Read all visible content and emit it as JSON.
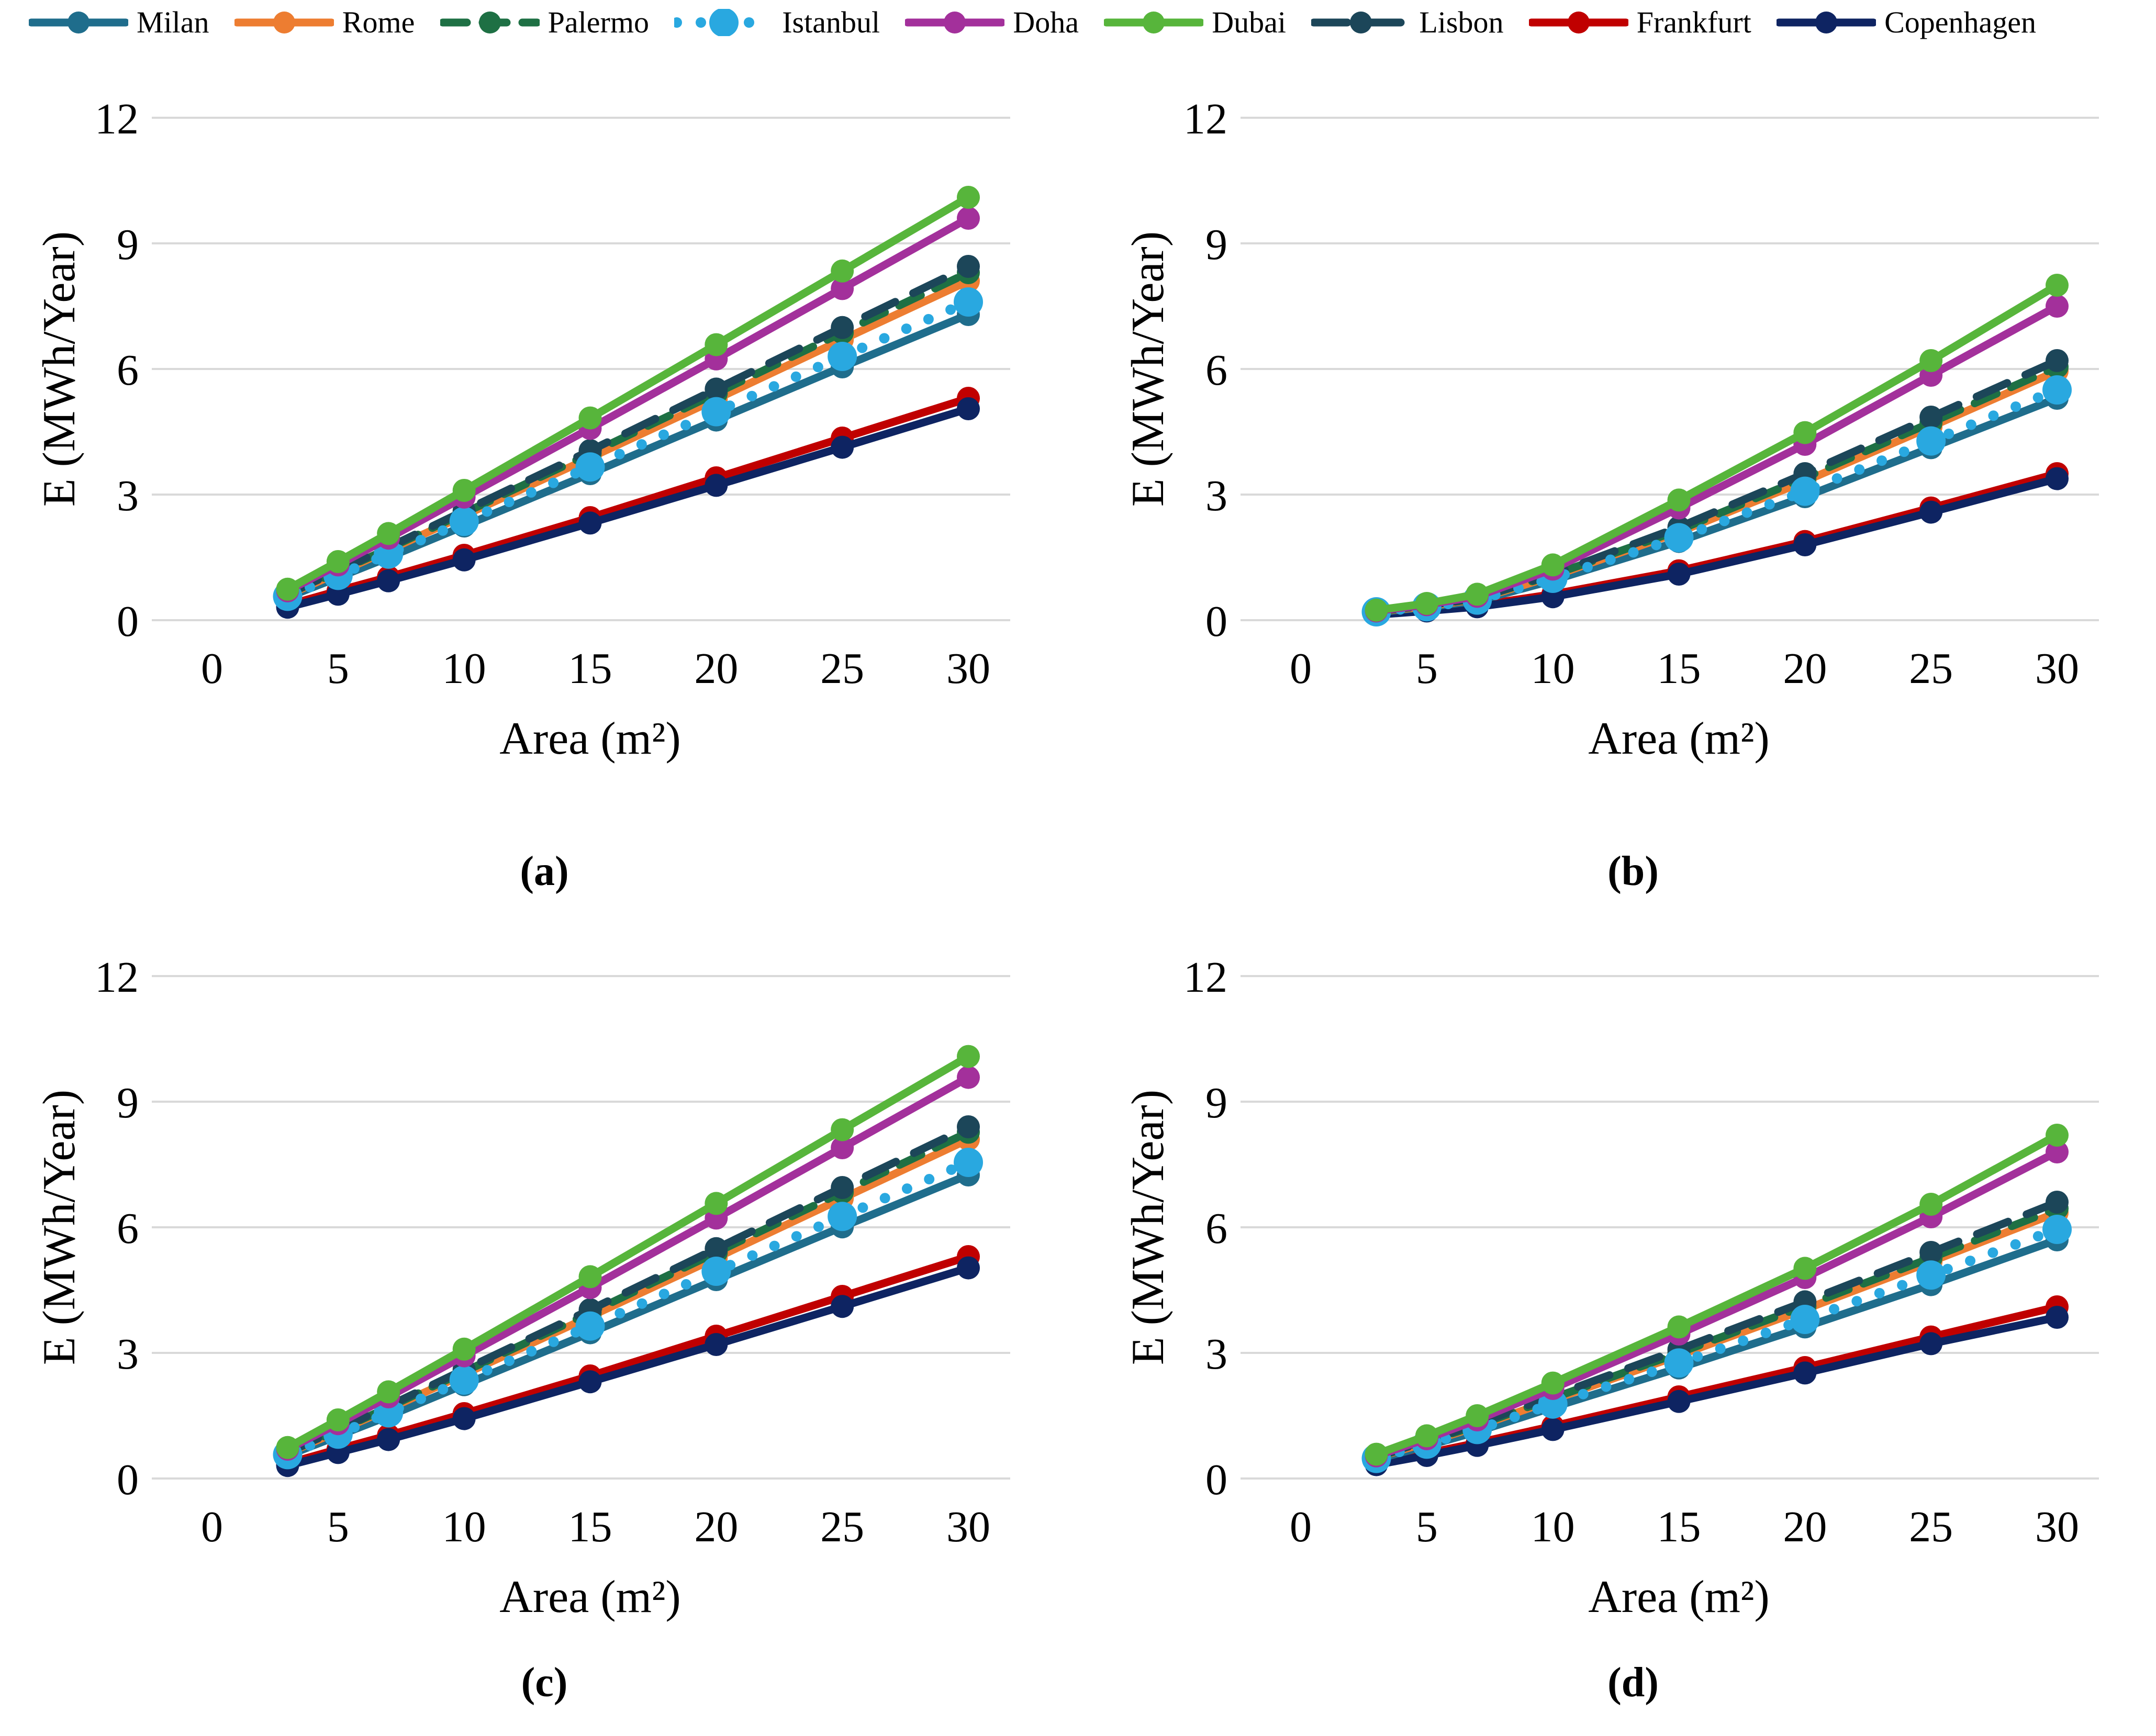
{
  "legend": {
    "items": [
      {
        "label": "Milan",
        "color": "#1F6D8C",
        "dash": "solid"
      },
      {
        "label": "Rome",
        "color": "#ED7D31",
        "dash": "solid"
      },
      {
        "label": "Palermo",
        "color": "#1E7044",
        "dash": "dashed"
      },
      {
        "label": "Istanbul",
        "color": "#29A8E0",
        "dash": "dotted"
      },
      {
        "label": "Doha",
        "color": "#A3309B",
        "dash": "solid"
      },
      {
        "label": "Dubai",
        "color": "#57B53B",
        "dash": "solid"
      },
      {
        "label": "Lisbon",
        "color": "#1C4659",
        "dash": "long-dash"
      },
      {
        "label": "Frankfurt",
        "color": "#C00000",
        "dash": "solid"
      },
      {
        "label": "Copenhagen",
        "color": "#0E2462",
        "dash": "solid"
      }
    ]
  },
  "axes": {
    "x_label": "Area (m²)",
    "y_label": "E (MWh/Year)",
    "x_ticks": [
      0,
      5,
      10,
      15,
      20,
      25,
      30
    ],
    "y_ticks": [
      0,
      3,
      6,
      9,
      12
    ],
    "x_range": [
      0,
      30
    ],
    "y_range": [
      0,
      12
    ],
    "grid": "horizontal",
    "gridline_color": "#D9D9D9"
  },
  "draw_order": [
    "Frankfurt",
    "Copenhagen",
    "Milan",
    "Rome",
    "Palermo",
    "Lisbon",
    "Istanbul",
    "Doha",
    "Dubai"
  ],
  "chart_data": [
    {
      "panel": "a",
      "caption": "(a)",
      "type": "line",
      "x": [
        3,
        5,
        7,
        10,
        15,
        20,
        25,
        30
      ],
      "series": [
        {
          "name": "Milan",
          "values": [
            0.55,
            1.02,
            1.5,
            2.25,
            3.5,
            4.78,
            6.05,
            7.3
          ]
        },
        {
          "name": "Rome",
          "values": [
            0.6,
            1.13,
            1.67,
            2.5,
            3.88,
            5.28,
            6.7,
            8.1
          ]
        },
        {
          "name": "Palermo",
          "values": [
            0.62,
            1.16,
            1.71,
            2.56,
            3.98,
            5.42,
            6.87,
            8.3
          ]
        },
        {
          "name": "Istanbul",
          "values": [
            0.57,
            1.07,
            1.58,
            2.36,
            3.66,
            4.98,
            6.3,
            7.6
          ]
        },
        {
          "name": "Doha",
          "values": [
            0.7,
            1.32,
            1.96,
            2.94,
            4.58,
            6.24,
            7.92,
            9.6
          ]
        },
        {
          "name": "Dubai",
          "values": [
            0.74,
            1.4,
            2.07,
            3.1,
            4.83,
            6.58,
            8.34,
            10.1
          ]
        },
        {
          "name": "Lisbon",
          "values": [
            0.63,
            1.18,
            1.74,
            2.61,
            4.05,
            5.52,
            6.99,
            8.45
          ]
        },
        {
          "name": "Frankfurt",
          "values": [
            0.36,
            0.7,
            1.03,
            1.55,
            2.45,
            3.4,
            4.35,
            5.3
          ]
        },
        {
          "name": "Copenhagen",
          "values": [
            0.31,
            0.62,
            0.94,
            1.44,
            2.32,
            3.22,
            4.13,
            5.05
          ]
        }
      ]
    },
    {
      "panel": "b",
      "caption": "(b)",
      "type": "line",
      "x": [
        3,
        5,
        7,
        10,
        15,
        20,
        25,
        30
      ],
      "series": [
        {
          "name": "Milan",
          "values": [
            0.19,
            0.31,
            0.46,
            0.95,
            1.88,
            2.95,
            4.12,
            5.3
          ]
        },
        {
          "name": "Rome",
          "values": [
            0.2,
            0.33,
            0.5,
            1.05,
            2.1,
            3.32,
            4.62,
            5.95
          ]
        },
        {
          "name": "Palermo",
          "values": [
            0.21,
            0.34,
            0.52,
            1.08,
            2.15,
            3.4,
            4.72,
            6.05
          ]
        },
        {
          "name": "Istanbul",
          "values": [
            0.2,
            0.32,
            0.48,
            1.0,
            1.97,
            3.08,
            4.28,
            5.5
          ]
        },
        {
          "name": "Doha",
          "values": [
            0.22,
            0.37,
            0.57,
            1.22,
            2.68,
            4.2,
            5.85,
            7.5
          ]
        },
        {
          "name": "Dubai",
          "values": [
            0.24,
            0.4,
            0.62,
            1.32,
            2.87,
            4.48,
            6.2,
            8.0
          ]
        },
        {
          "name": "Lisbon",
          "values": [
            0.21,
            0.35,
            0.53,
            1.1,
            2.22,
            3.5,
            4.85,
            6.2
          ]
        },
        {
          "name": "Frankfurt",
          "values": [
            0.15,
            0.24,
            0.35,
            0.62,
            1.18,
            1.88,
            2.68,
            3.5
          ]
        },
        {
          "name": "Copenhagen",
          "values": [
            0.13,
            0.22,
            0.32,
            0.56,
            1.1,
            1.8,
            2.58,
            3.38
          ]
        }
      ]
    },
    {
      "panel": "c",
      "caption": "(c)",
      "type": "line",
      "x": [
        3,
        5,
        7,
        10,
        15,
        20,
        25,
        30
      ],
      "series": [
        {
          "name": "Milan",
          "values": [
            0.55,
            1.02,
            1.49,
            2.24,
            3.48,
            4.75,
            6.01,
            7.25
          ]
        },
        {
          "name": "Rome",
          "values": [
            0.6,
            1.13,
            1.66,
            2.49,
            3.87,
            5.27,
            6.69,
            8.1
          ]
        },
        {
          "name": "Palermo",
          "values": [
            0.62,
            1.15,
            1.7,
            2.55,
            3.96,
            5.4,
            6.84,
            8.27
          ]
        },
        {
          "name": "Istanbul",
          "values": [
            0.57,
            1.06,
            1.57,
            2.35,
            3.64,
            4.95,
            6.26,
            7.55
          ]
        },
        {
          "name": "Doha",
          "values": [
            0.7,
            1.31,
            1.95,
            2.93,
            4.56,
            6.22,
            7.9,
            9.58
          ]
        },
        {
          "name": "Dubai",
          "values": [
            0.74,
            1.4,
            2.07,
            3.09,
            4.82,
            6.57,
            8.33,
            10.08
          ]
        },
        {
          "name": "Lisbon",
          "values": [
            0.63,
            1.17,
            1.73,
            2.6,
            4.03,
            5.49,
            6.95,
            8.4
          ]
        },
        {
          "name": "Frankfurt",
          "values": [
            0.36,
            0.7,
            1.03,
            1.55,
            2.45,
            3.4,
            4.35,
            5.3
          ]
        },
        {
          "name": "Copenhagen",
          "values": [
            0.31,
            0.62,
            0.93,
            1.43,
            2.31,
            3.2,
            4.11,
            5.03
          ]
        }
      ]
    },
    {
      "panel": "d",
      "caption": "(d)",
      "type": "line",
      "x": [
        3,
        5,
        7,
        10,
        15,
        20,
        25,
        30
      ],
      "series": [
        {
          "name": "Milan",
          "values": [
            0.46,
            0.78,
            1.12,
            1.7,
            2.64,
            3.62,
            4.63,
            5.7
          ]
        },
        {
          "name": "Rome",
          "values": [
            0.5,
            0.86,
            1.24,
            1.88,
            2.94,
            4.04,
            5.18,
            6.35
          ]
        },
        {
          "name": "Palermo",
          "values": [
            0.51,
            0.88,
            1.27,
            1.92,
            3.0,
            4.12,
            5.27,
            6.45
          ]
        },
        {
          "name": "Istanbul",
          "values": [
            0.48,
            0.82,
            1.17,
            1.78,
            2.76,
            3.8,
            4.86,
            5.95
          ]
        },
        {
          "name": "Doha",
          "values": [
            0.54,
            0.95,
            1.4,
            2.15,
            3.45,
            4.8,
            6.25,
            7.8
          ]
        },
        {
          "name": "Dubai",
          "values": [
            0.58,
            1.02,
            1.5,
            2.28,
            3.62,
            5.02,
            6.55,
            8.2
          ]
        },
        {
          "name": "Lisbon",
          "values": [
            0.52,
            0.9,
            1.3,
            1.97,
            3.08,
            4.22,
            5.4,
            6.6
          ]
        },
        {
          "name": "Frankfurt",
          "values": [
            0.36,
            0.6,
            0.85,
            1.25,
            1.95,
            2.65,
            3.38,
            4.1
          ]
        },
        {
          "name": "Copenhagen",
          "values": [
            0.33,
            0.55,
            0.79,
            1.17,
            1.84,
            2.52,
            3.22,
            3.85
          ]
        }
      ]
    }
  ]
}
